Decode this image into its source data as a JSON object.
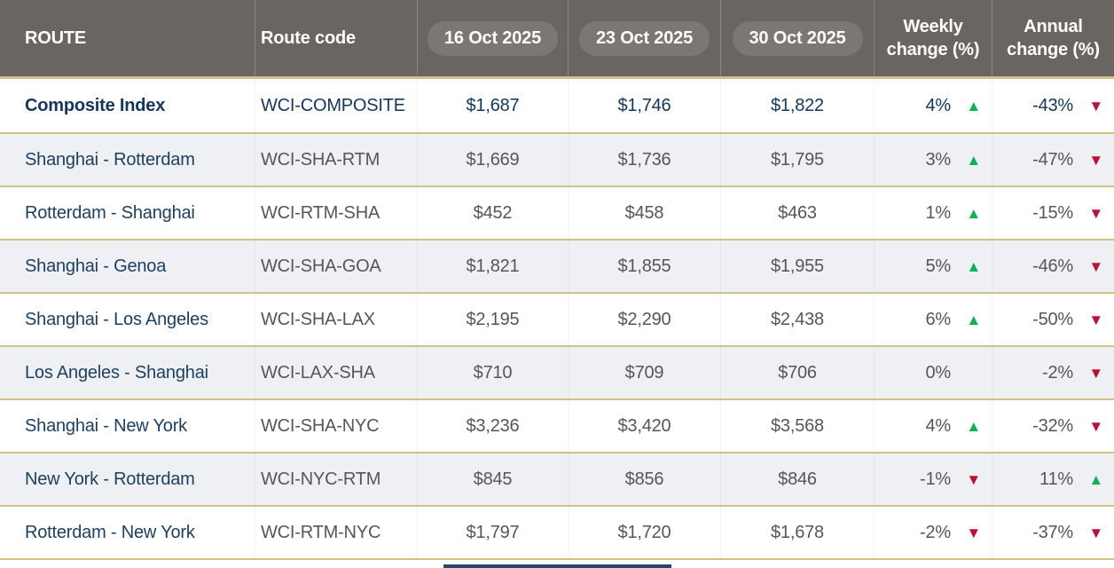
{
  "chart_data": {
    "type": "table",
    "header": {
      "route": "ROUTE",
      "code": "Route code",
      "dates": [
        "16 Oct 2025",
        "23 Oct 2025",
        "30 Oct 2025"
      ],
      "weekly": {
        "line1": "Weekly",
        "line2": "change (%)"
      },
      "annual": {
        "line1": "Annual",
        "line2": "change (%)"
      }
    },
    "rows": [
      {
        "route": "Composite Index",
        "code": "WCI-COMPOSITE",
        "p1": "$1,687",
        "p2": "$1,746",
        "p3": "$1,822",
        "weekly_value": "4%",
        "weekly_dir": "up",
        "annual_value": "-43%",
        "annual_dir": "down"
      },
      {
        "route": "Shanghai - Rotterdam",
        "code": "WCI-SHA-RTM",
        "p1": "$1,669",
        "p2": "$1,736",
        "p3": "$1,795",
        "weekly_value": "3%",
        "weekly_dir": "up",
        "annual_value": "-47%",
        "annual_dir": "down"
      },
      {
        "route": "Rotterdam - Shanghai",
        "code": "WCI-RTM-SHA",
        "p1": "$452",
        "p2": "$458",
        "p3": "$463",
        "weekly_value": "1%",
        "weekly_dir": "up",
        "annual_value": "-15%",
        "annual_dir": "down"
      },
      {
        "route": "Shanghai - Genoa",
        "code": "WCI-SHA-GOA",
        "p1": "$1,821",
        "p2": "$1,855",
        "p3": "$1,955",
        "weekly_value": "5%",
        "weekly_dir": "up",
        "annual_value": "-46%",
        "annual_dir": "down"
      },
      {
        "route": "Shanghai - Los Angeles",
        "code": "WCI-SHA-LAX",
        "p1": "$2,195",
        "p2": "$2,290",
        "p3": "$2,438",
        "weekly_value": "6%",
        "weekly_dir": "up",
        "annual_value": "-50%",
        "annual_dir": "down"
      },
      {
        "route": "Los Angeles - Shanghai",
        "code": "WCI-LAX-SHA",
        "p1": "$710",
        "p2": "$709",
        "p3": "$706",
        "weekly_value": "0%",
        "weekly_dir": "none",
        "annual_value": "-2%",
        "annual_dir": "down"
      },
      {
        "route": "Shanghai - New York",
        "code": "WCI-SHA-NYC",
        "p1": "$3,236",
        "p2": "$3,420",
        "p3": "$3,568",
        "weekly_value": "4%",
        "weekly_dir": "up",
        "annual_value": "-32%",
        "annual_dir": "down"
      },
      {
        "route": "New York - Rotterdam",
        "code": "WCI-NYC-RTM",
        "p1": "$845",
        "p2": "$856",
        "p3": "$846",
        "weekly_value": "-1%",
        "weekly_dir": "down",
        "annual_value": "11%",
        "annual_dir": "up"
      },
      {
        "route": "Rotterdam - New York",
        "code": "WCI-RTM-NYC",
        "p1": "$1,797",
        "p2": "$1,720",
        "p3": "$1,678",
        "weekly_value": "-2%",
        "weekly_dir": "down",
        "annual_value": "-37%",
        "annual_dir": "down"
      }
    ]
  },
  "icons": {
    "up": "▲",
    "down": "▼"
  },
  "colors": {
    "accent_border": "#d4bf8b",
    "header_bg": "#6b6561",
    "pill_bg": "#7d7773",
    "row_alt_bg": "#eef0f3",
    "route_navy": "#1c4062",
    "emphasis_navy": "#14365e",
    "muted_gray": "#54565c",
    "up_green": "#0cb257",
    "down_red": "#c00d33",
    "footer_navy": "#28466b"
  }
}
